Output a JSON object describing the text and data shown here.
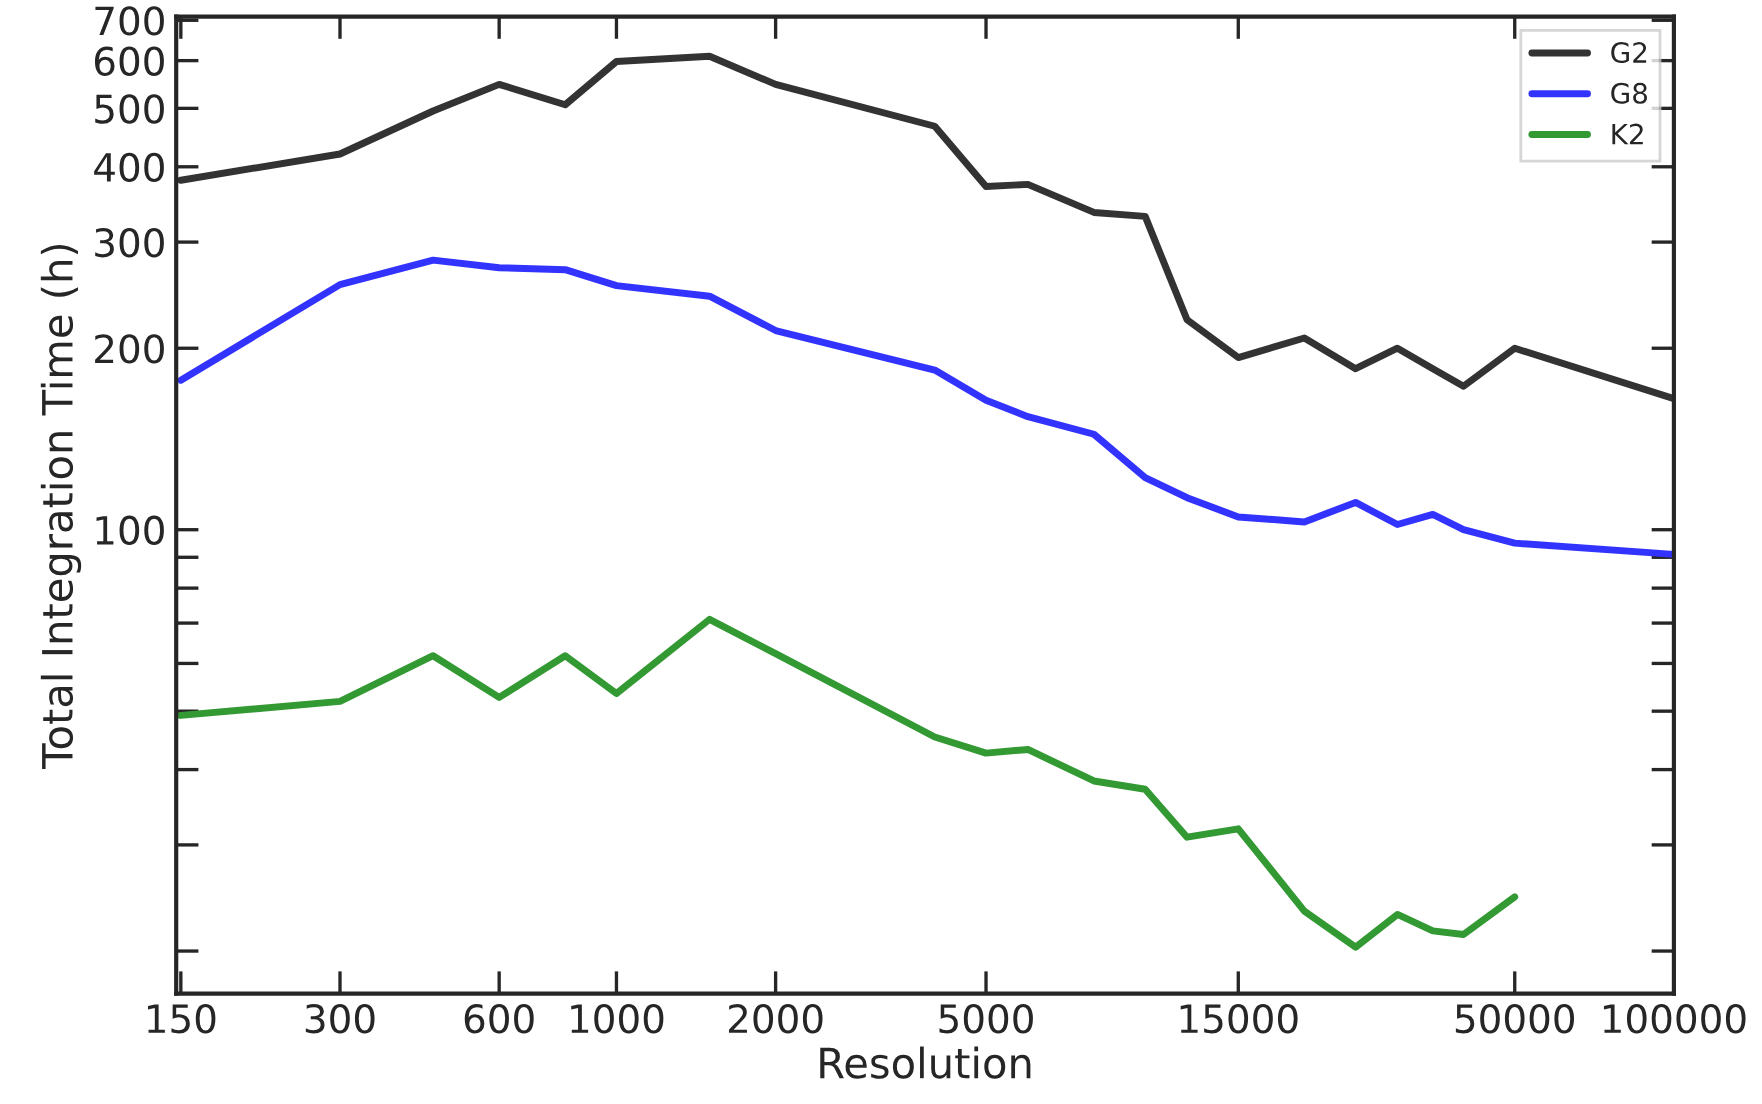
{
  "chart_data": {
    "type": "line",
    "xlabel": "Resolution",
    "ylabel": "Total Integration Time (h)",
    "log": "xy",
    "legend": "top right",
    "grid": false,
    "x": [
      150,
      300,
      450,
      600,
      800,
      1000,
      1500,
      2000,
      4000,
      5000,
      6000,
      8000,
      10000,
      12000,
      15000,
      20000,
      25000,
      30000,
      35000,
      40000,
      50000,
      100000
    ],
    "series": [
      {
        "name": "G2",
        "color": "#333333",
        "values": [
          380,
          420,
          495,
          548,
          507,
          598,
          610,
          548,
          467,
          371,
          374,
          336,
          331,
          223,
          193,
          208,
          185,
          200,
          185,
          173,
          200,
          165
        ]
      },
      {
        "name": "G8",
        "color": "#3333ff",
        "values": [
          177,
          255,
          280,
          272,
          270,
          254,
          244,
          214,
          184,
          164,
          154,
          144,
          122,
          113,
          105,
          103,
          111,
          102,
          106,
          100,
          95,
          91
        ]
      },
      {
        "name": "K2",
        "color": "#339933",
        "values": [
          49.2,
          51.9,
          61.8,
          52.7,
          61.8,
          53.5,
          71.0,
          62.3,
          45.3,
          42.6,
          43.2,
          38.3,
          37.1,
          30.9,
          31.9,
          23.3,
          20.3,
          23.0,
          21.6,
          21.3,
          24.6,
          null
        ]
      }
    ],
    "xlim": [
      147,
      100000
    ],
    "ylim": [
      17,
      710
    ],
    "xticks": [
      {
        "value": 150,
        "label": "150"
      },
      300,
      600,
      1000,
      2000,
      5000,
      15000,
      50000,
      100000
    ],
    "yticks": [
      {
        "value": 20,
        "label": null
      },
      {
        "value": 30,
        "label": null
      },
      {
        "value": 40,
        "label": null
      },
      {
        "value": 50,
        "label": null
      },
      {
        "value": 60,
        "label": null
      },
      {
        "value": 70,
        "label": null
      },
      {
        "value": 80,
        "label": null
      },
      {
        "value": 90,
        "label": null
      },
      100,
      200,
      300,
      400,
      500,
      600,
      700
    ]
  }
}
